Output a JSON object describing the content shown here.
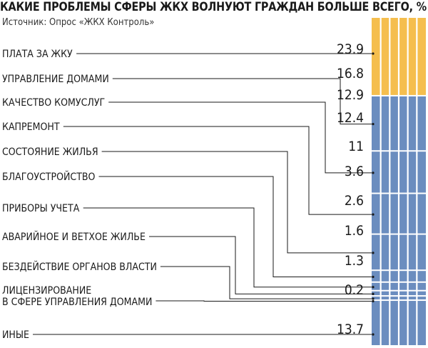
{
  "header": {
    "title": "КАКИЕ ПРОБЛЕМЫ СФЕРЫ ЖКХ ВОЛНУЮТ ГРАЖДАН БОЛЬШЕ ВСЕГО, %",
    "source": "Источник: Опрос «ЖКХ Контроль»"
  },
  "colors": {
    "highlight": "#F5BE4E",
    "base": "#6B8DBF",
    "line": "#1a1a1a"
  },
  "chart_data": {
    "type": "bar",
    "orientation": "stacked-column",
    "title": "КАКИЕ ПРОБЛЕМЫ СФЕРЫ ЖКХ ВОЛНУЮТ ГРАЖДАН БОЛЬШЕ ВСЕГО, %",
    "categories": [
      "ПЛАТА ЗА ЖКУ",
      "УПРАВЛЕНИЕ ДОМАМИ",
      "КАЧЕСТВО КОМУСЛУГ",
      "КАПРЕМОНТ",
      "СОСТОЯНИЕ ЖИЛЬЯ",
      "БЛАГОУСТРОЙСТВО",
      "ПРИБОРЫ УЧЕТА",
      "АВАРИЙНОЕ И ВЕТХОЕ ЖИЛЬЕ",
      "БЕЗДЕЙСТВИЕ ОРГАНОВ ВЛАСТИ",
      "ЛИЦЕНЗИРОВАНИЕ\nВ СФЕРЕ УПРАВЛЕНИЯ ДОМАМИ",
      "ИНЫЕ"
    ],
    "values": [
      23.9,
      16.8,
      12.9,
      12.4,
      11,
      3.6,
      2.6,
      1.6,
      1.3,
      0.2,
      13.7
    ],
    "value_labels": [
      "23.9",
      "16.8",
      "12.9",
      "12.4",
      "11",
      "3.6",
      "2.6",
      "1.6",
      "1.3",
      "0.2",
      "13.7"
    ],
    "highlighted_index": 0,
    "total": 100,
    "grid": false,
    "legend": "none"
  }
}
